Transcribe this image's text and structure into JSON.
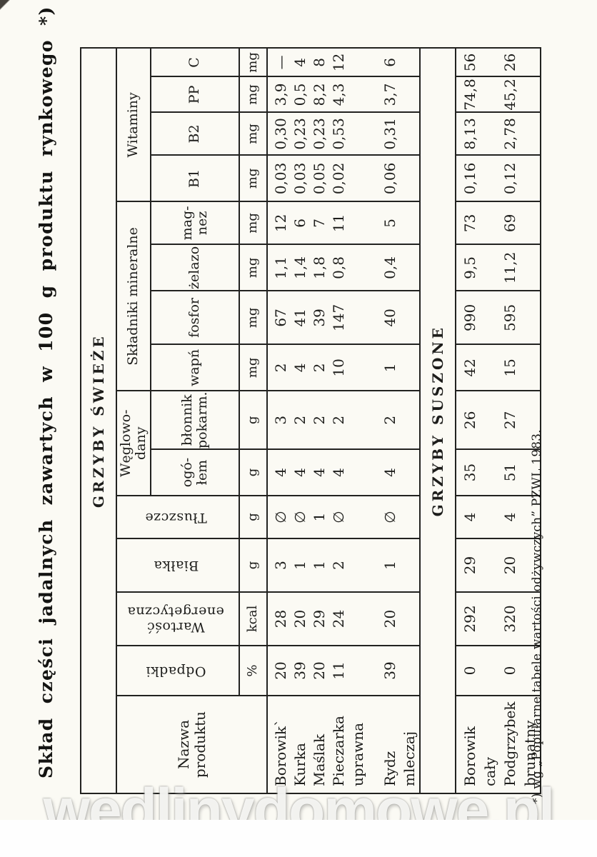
{
  "page": {
    "title": "Skład  części  jadalnych  zawartych  w  100  g  produktu  rynkowego  *)",
    "footnote": "*) wg „Popularne tabele wartości odżywczych” PZWL 1983.",
    "watermark": "wedlinydomowe.pl"
  },
  "table": {
    "sections": {
      "fresh": "GRZYBY ŚWIEŻE",
      "dried": "GRZYBY SUSZONE"
    },
    "headers": {
      "name": "Nazwa\nproduktu",
      "odpadki": "Odpadki",
      "energia": "Wartość\nenergetyczna",
      "bialka": "Białka",
      "tluszcze": "Tłuszcze",
      "weglowodany": "Węglowo-\ndany",
      "ogolem": "ogó-\nłem",
      "blonnik": "błonnik\npokarm.",
      "mineralne": "Składniki mineralne",
      "wapn": "wapń",
      "fosfor": "fosfor",
      "zelazo": "żelazo",
      "magnez": "mag-\nnez",
      "witaminy": "Witaminy",
      "b1": "B1",
      "b2": "B2",
      "pp": "PP",
      "c": "C"
    },
    "units": [
      "%",
      "kcal",
      "g",
      "g",
      "g",
      "g",
      "mg",
      "mg",
      "mg",
      "mg",
      "mg",
      "mg",
      "mg",
      "mg"
    ],
    "fresh_rows": [
      {
        "name_lines": [
          "Borowik`"
        ],
        "values": [
          "20",
          "28",
          "3",
          "∅",
          "4",
          "3",
          "2",
          "67",
          "1,1",
          "12",
          "0,03",
          "0,30",
          "3,9",
          "—"
        ]
      },
      {
        "name_lines": [
          "Kurka"
        ],
        "values": [
          "39",
          "20",
          "1",
          "∅",
          "4",
          "2",
          "4",
          "41",
          "1,4",
          "6",
          "0,03",
          "0,23",
          "0,5",
          "4"
        ]
      },
      {
        "name_lines": [
          "Maślak"
        ],
        "values": [
          "20",
          "29",
          "1",
          "1",
          "4",
          "2",
          "2",
          "39",
          "1,8",
          "7",
          "0,05",
          "0,23",
          "8,2",
          "8"
        ]
      },
      {
        "name_lines": [
          "Pieczarka",
          "uprawna"
        ],
        "values": [
          "11",
          "24",
          "2",
          "∅",
          "4",
          "2",
          "10",
          "147",
          "0,8",
          "11",
          "0,02",
          "0,53",
          "4,3",
          "12"
        ]
      },
      {
        "name_lines": [
          "Rydz",
          "mleczaj"
        ],
        "values": [
          "39",
          "20",
          "1",
          "∅",
          "4",
          "2",
          "1",
          "40",
          "0,4",
          "5",
          "0,06",
          "0,31",
          "3,7",
          "6"
        ]
      }
    ],
    "dried_rows": [
      {
        "name_lines": [
          "Borowik",
          "cały"
        ],
        "values": [
          "0",
          "292",
          "29",
          "4",
          "35",
          "26",
          "42",
          "990",
          "9,5",
          "73",
          "0,16",
          "8,13",
          "74,8",
          "56"
        ]
      },
      {
        "name_lines": [
          "Podgrzybek",
          "brunatny"
        ],
        "values": [
          "0",
          "320",
          "20",
          "4",
          "51",
          "27",
          "15",
          "595",
          "11,2",
          "69",
          "0,12",
          "2,78",
          "45,2",
          "26"
        ]
      }
    ]
  }
}
